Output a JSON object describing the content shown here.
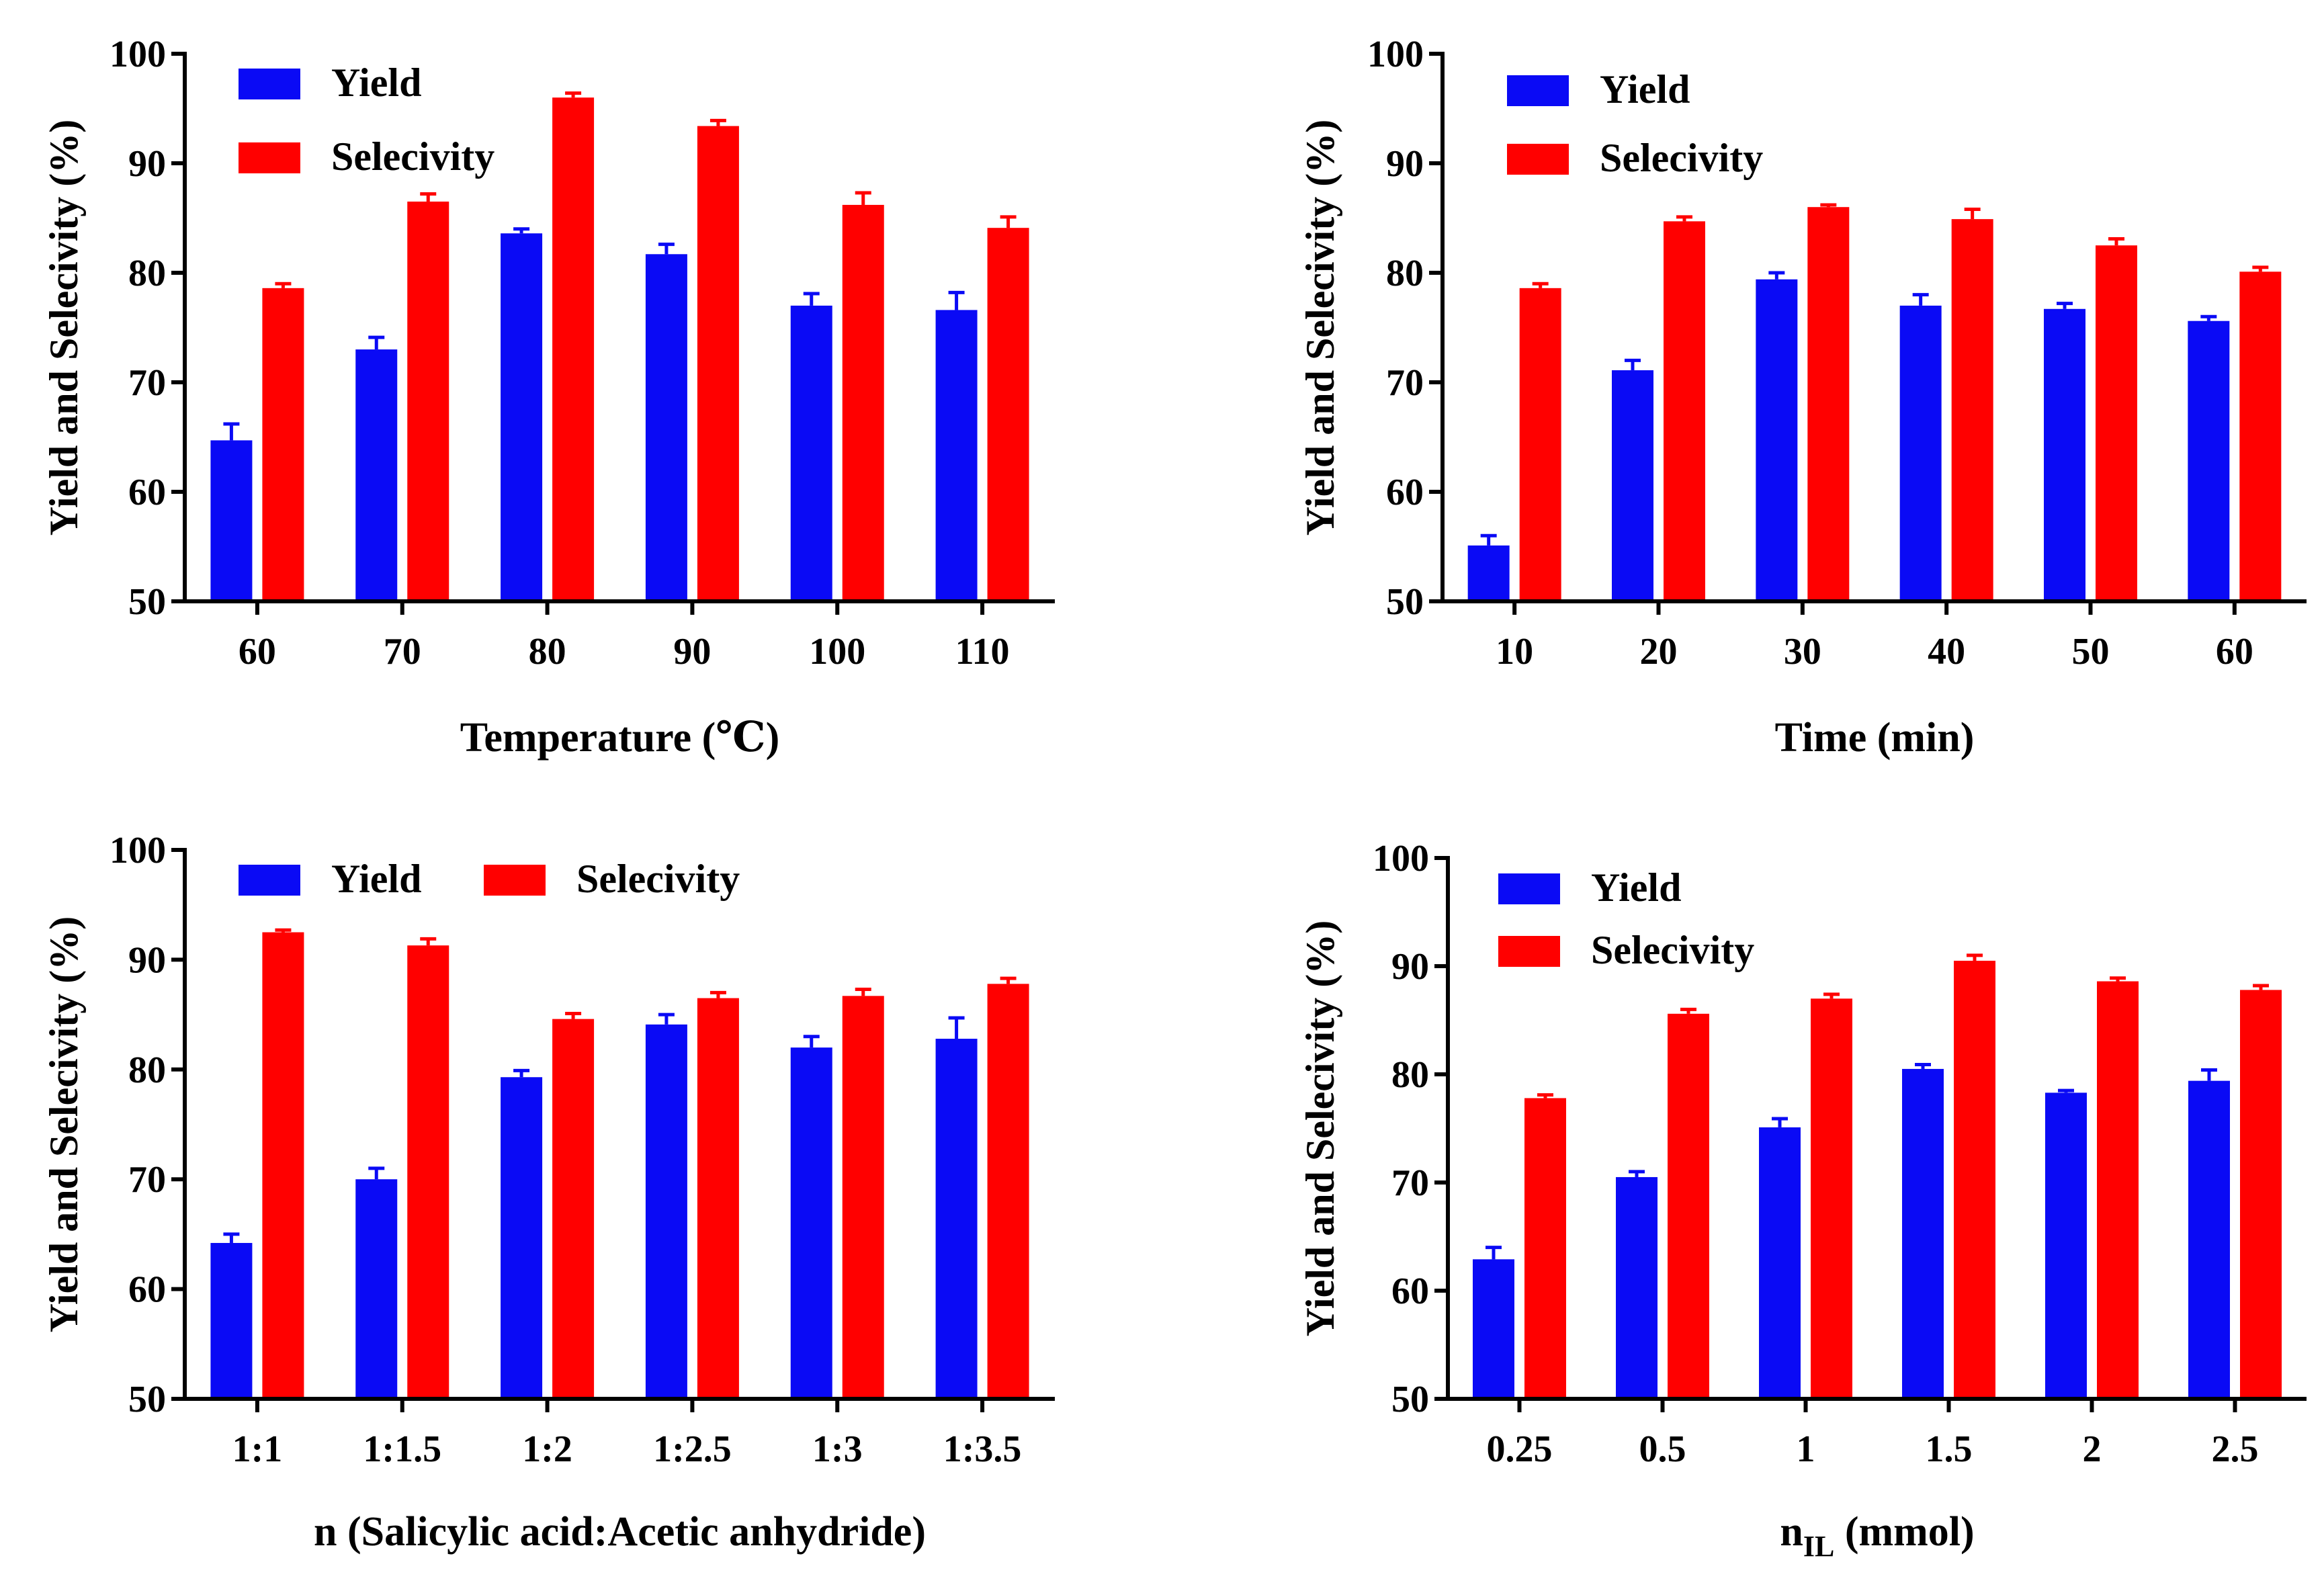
{
  "colors": {
    "yield": "#0a0af5",
    "selectivity": "#ff0000",
    "axis": "#000000"
  },
  "chart_data": [
    {
      "type": "bar",
      "title": "",
      "xlabel": "Temperature (℃)",
      "ylabel": "Yield and Selecivity (%)",
      "ylim": [
        50,
        100
      ],
      "yticks": [
        "50",
        "60",
        "70",
        "80",
        "90",
        "100"
      ],
      "categories": [
        "60",
        "70",
        "80",
        "90",
        "100",
        "110"
      ],
      "legend": "top-left",
      "series": [
        {
          "name": "Yield",
          "values": [
            64.7,
            73.0,
            83.6,
            81.7,
            77.0,
            76.6
          ],
          "errors": [
            1.5,
            1.1,
            0.4,
            0.9,
            1.1,
            1.6
          ]
        },
        {
          "name": "Selecivity",
          "values": [
            78.6,
            86.5,
            96.0,
            93.4,
            86.2,
            84.1
          ],
          "errors": [
            0.4,
            0.7,
            0.4,
            0.5,
            1.1,
            1.0
          ]
        }
      ]
    },
    {
      "type": "bar",
      "title": "",
      "xlabel": "Time (min)",
      "ylabel": "Yield and Selecivity (%)",
      "ylim": [
        50,
        100
      ],
      "yticks": [
        "50",
        "60",
        "70",
        "80",
        "90",
        "100"
      ],
      "categories": [
        "10",
        "20",
        "30",
        "40",
        "50",
        "60"
      ],
      "legend": "top-left",
      "series": [
        {
          "name": "Yield",
          "values": [
            55.1,
            71.1,
            79.4,
            77.0,
            76.7,
            75.6
          ],
          "errors": [
            0.9,
            0.9,
            0.6,
            1.0,
            0.5,
            0.4
          ]
        },
        {
          "name": "Selecivity",
          "values": [
            78.6,
            84.7,
            86.0,
            84.9,
            82.5,
            80.1
          ],
          "errors": [
            0.4,
            0.4,
            0.2,
            0.9,
            0.6,
            0.4
          ]
        }
      ]
    },
    {
      "type": "bar",
      "title": "",
      "xlabel": "n (Salicylic acid:Acetic  anhydride)",
      "ylabel": "Yield and Selecivity (%)",
      "ylim": [
        50,
        100
      ],
      "yticks": [
        "50",
        "60",
        "70",
        "80",
        "90",
        "100"
      ],
      "categories": [
        "1:1",
        "1:1.5",
        "1:2",
        "1:2.5",
        "1:3",
        "1:3.5"
      ],
      "legend": "top-left-horizontal",
      "series": [
        {
          "name": "Yield",
          "values": [
            64.2,
            70.0,
            79.3,
            84.1,
            82.0,
            82.8
          ],
          "errors": [
            0.8,
            1.0,
            0.6,
            0.9,
            1.0,
            1.9
          ]
        },
        {
          "name": "Selecivity",
          "values": [
            92.5,
            91.3,
            84.6,
            86.5,
            86.7,
            87.8
          ],
          "errors": [
            0.2,
            0.6,
            0.5,
            0.5,
            0.6,
            0.5
          ]
        }
      ]
    },
    {
      "type": "bar",
      "title": "",
      "xlabel_main": "n",
      "xlabel_sub": "IL",
      "xlabel_rest": " (mmol)",
      "ylabel": "Yield and Selecivity (%)",
      "ylim": [
        50,
        100
      ],
      "yticks": [
        "50",
        "60",
        "70",
        "80",
        "90",
        "100"
      ],
      "categories": [
        "0.25",
        "0.5",
        "1",
        "1.5",
        "2",
        "2.5"
      ],
      "legend": "top-left",
      "series": [
        {
          "name": "Yield",
          "values": [
            62.9,
            70.5,
            75.1,
            80.5,
            78.3,
            79.4
          ],
          "errors": [
            1.1,
            0.5,
            0.8,
            0.4,
            0.2,
            1.0
          ]
        },
        {
          "name": "Selecivity",
          "values": [
            77.8,
            85.6,
            87.0,
            90.5,
            88.6,
            87.8
          ],
          "errors": [
            0.3,
            0.4,
            0.4,
            0.5,
            0.3,
            0.4
          ]
        }
      ]
    }
  ]
}
